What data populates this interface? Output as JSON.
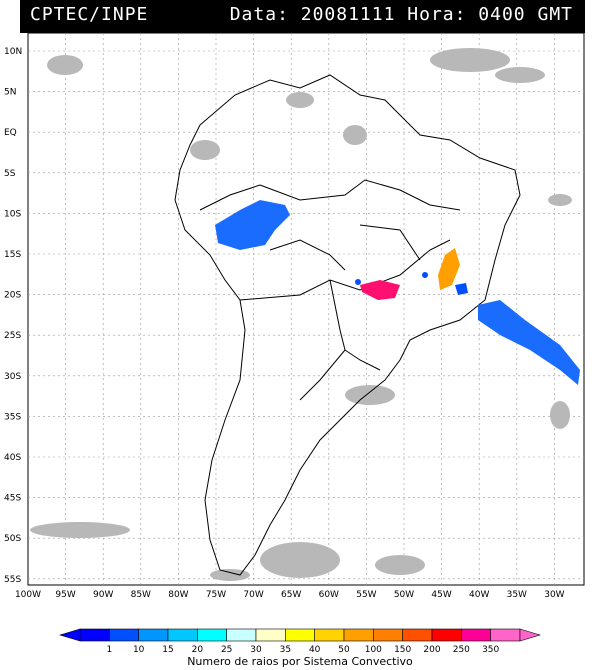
{
  "header": {
    "source": "CPTEC/INPE",
    "datetime": "Data: 20081111 Hora: 0400 GMT"
  },
  "lat_labels": [
    "10N",
    "5N",
    "EQ",
    "5S",
    "10S",
    "15S",
    "20S",
    "25S",
    "30S",
    "35S",
    "40S",
    "45S",
    "50S",
    "55S"
  ],
  "lon_labels": [
    "100W",
    "95W",
    "90W",
    "85W",
    "80W",
    "75W",
    "70W",
    "65W",
    "60W",
    "55W",
    "50W",
    "45W",
    "40W",
    "35W",
    "30W"
  ],
  "legend": {
    "values": [
      "1",
      "10",
      "15",
      "20",
      "25",
      "30",
      "35",
      "40",
      "50",
      "100",
      "150",
      "200",
      "250",
      "350"
    ],
    "colors": [
      "#0000ff",
      "#0050ff",
      "#0096ff",
      "#00c8ff",
      "#00ffff",
      "#c8ffff",
      "#ffffc8",
      "#ffff00",
      "#ffd200",
      "#ffa000",
      "#ff8000",
      "#ff5000",
      "#ff0000",
      "#ff0096",
      "#ff64c8"
    ],
    "caption": "Numero de raios por Sistema Convectivo"
  }
}
